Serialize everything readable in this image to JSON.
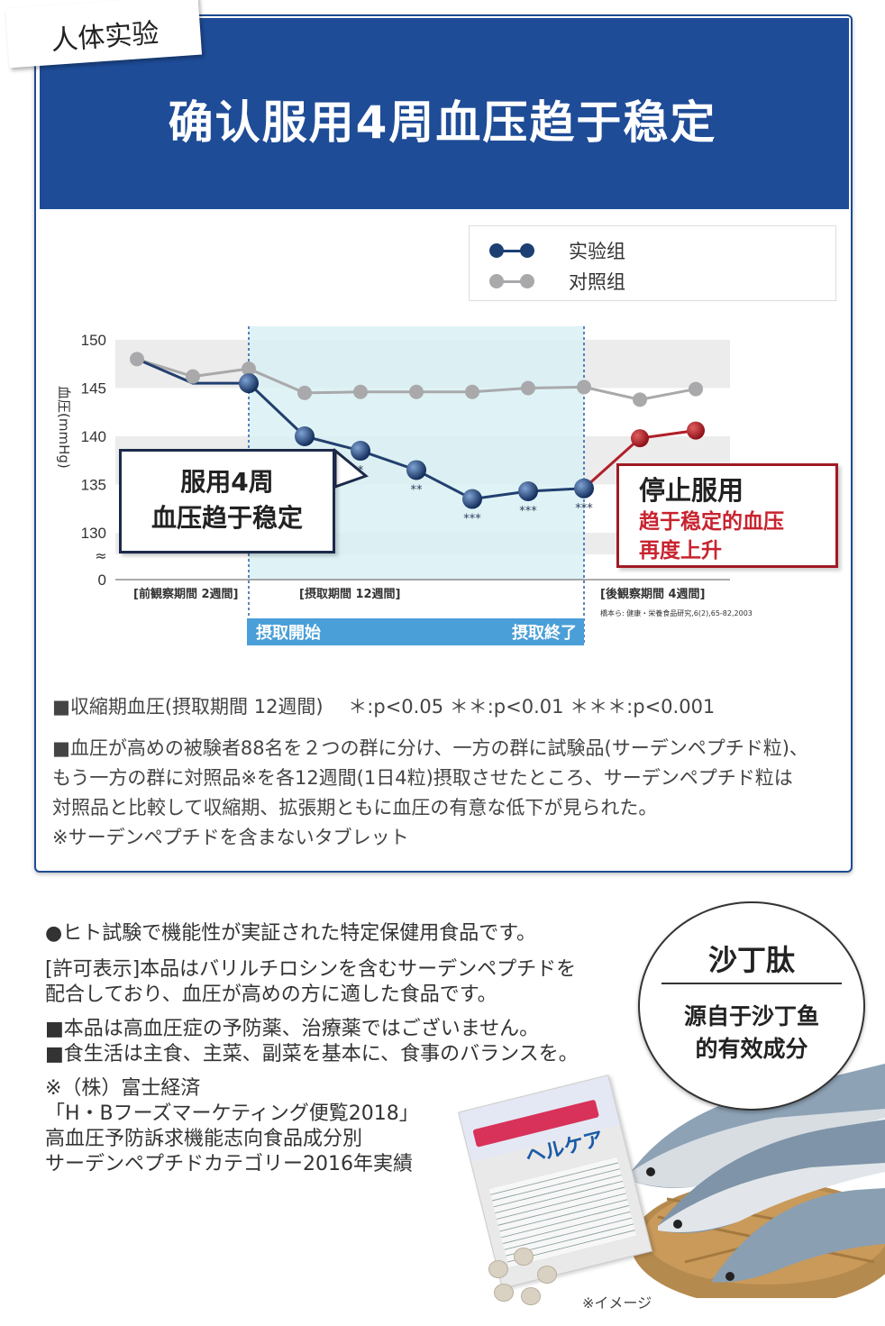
{
  "tag": "人体实验",
  "banner_title": "确认服用4周血压趋于稳定",
  "legend": {
    "experiment": "实验组",
    "control": "对照组"
  },
  "colors": {
    "banner": "#1e4c97",
    "experiment_series": "#1d3f73",
    "after_series": "#b0202a",
    "control_series": "#a9a9ab",
    "intake_band": "#d9f1f5",
    "intake_bar": "#4a9fd8"
  },
  "chart_data": {
    "type": "line",
    "ylabel": "血圧(mmHg)",
    "yticks": [
      "150",
      "145",
      "140",
      "135",
      "130",
      "0"
    ],
    "ylim": [
      130,
      150
    ],
    "axis_break": true,
    "periods": [
      "[前観察期間 2週間]",
      "[摂取期間 12週間]",
      "[後観察期間 4週間]"
    ],
    "source": "橋本ら: 健康・栄養食品研究,6(2),65-82,2003",
    "timepoints": 11,
    "series": [
      {
        "name": "実验组",
        "x": [
          0,
          1,
          2,
          3,
          4,
          5,
          6,
          7,
          8,
          9,
          10
        ],
        "values": [
          148,
          145.5,
          145.5,
          140,
          138.5,
          136.5,
          133.5,
          134.3,
          134.6,
          139.8,
          140.6
        ]
      },
      {
        "name": "対照组",
        "x": [
          0,
          1,
          2,
          3,
          4,
          5,
          6,
          7,
          8,
          9,
          10
        ],
        "values": [
          148,
          146.2,
          147,
          144.5,
          144.6,
          144.6,
          144.6,
          145.0,
          145.1,
          143.8,
          144.9
        ]
      }
    ],
    "significance": [
      {
        "x": 4,
        "label": "*"
      },
      {
        "x": 5,
        "label": "**"
      },
      {
        "x": 6,
        "label": "***"
      },
      {
        "x": 7,
        "label": "***"
      },
      {
        "x": 8,
        "label": "***"
      }
    ],
    "intake_start": "摂取開始",
    "intake_end": "摂取終了"
  },
  "callout_left": {
    "line1": "服用4周",
    "line2": "血压趋于稳定"
  },
  "callout_right": {
    "line1": "停止服用",
    "line2": "趋于稳定的血压",
    "line3": "再度上升"
  },
  "notes": {
    "line1": "■収縮期血圧(摂取期間 12週間)　 ＊:p<0.05 ＊＊:p<0.01 ＊＊＊:p<0.001",
    "line2": "■血圧が高めの被験者88名を２つの群に分け、一方の群に試験品(サーデンペプチド粒)、",
    "line3": "もう一方の群に対照品※を各12週間(1日4粒)摂取させたところ、サーデンペプチド粒は",
    "line4": "対照品と比較して収縮期、拡張期ともに血圧の有意な低下が見られた。",
    "line5": "※サーデンペプチドを含まないタブレット"
  },
  "bottom": {
    "line1": "●ヒト試験で機能性が実証された特定保健用食品です。",
    "line2": "[許可表示]本品はバリルチロシンを含むサーデンペプチドを",
    "line3": "配合しており、血圧が高めの方に適した食品です。",
    "line4": "■本品は高血圧症の予防薬、治療薬ではございません。",
    "line5": "■食生活は主食、主菜、副菜を基本に、食事のバランスを。",
    "line6": "※（株）富士経済",
    "line7": "「H・Bフーズマーケティング便覧2018」",
    "line8": "高血圧予防訴求機能志向食品成分別",
    "line9": "サーデンペプチドカテゴリー2016年実績"
  },
  "circle": {
    "title": "沙丁肽",
    "sub1": "源自于沙丁鱼",
    "sub2": "的有效成分"
  },
  "product_label": "ヘルケア",
  "image_note": "※イメージ"
}
